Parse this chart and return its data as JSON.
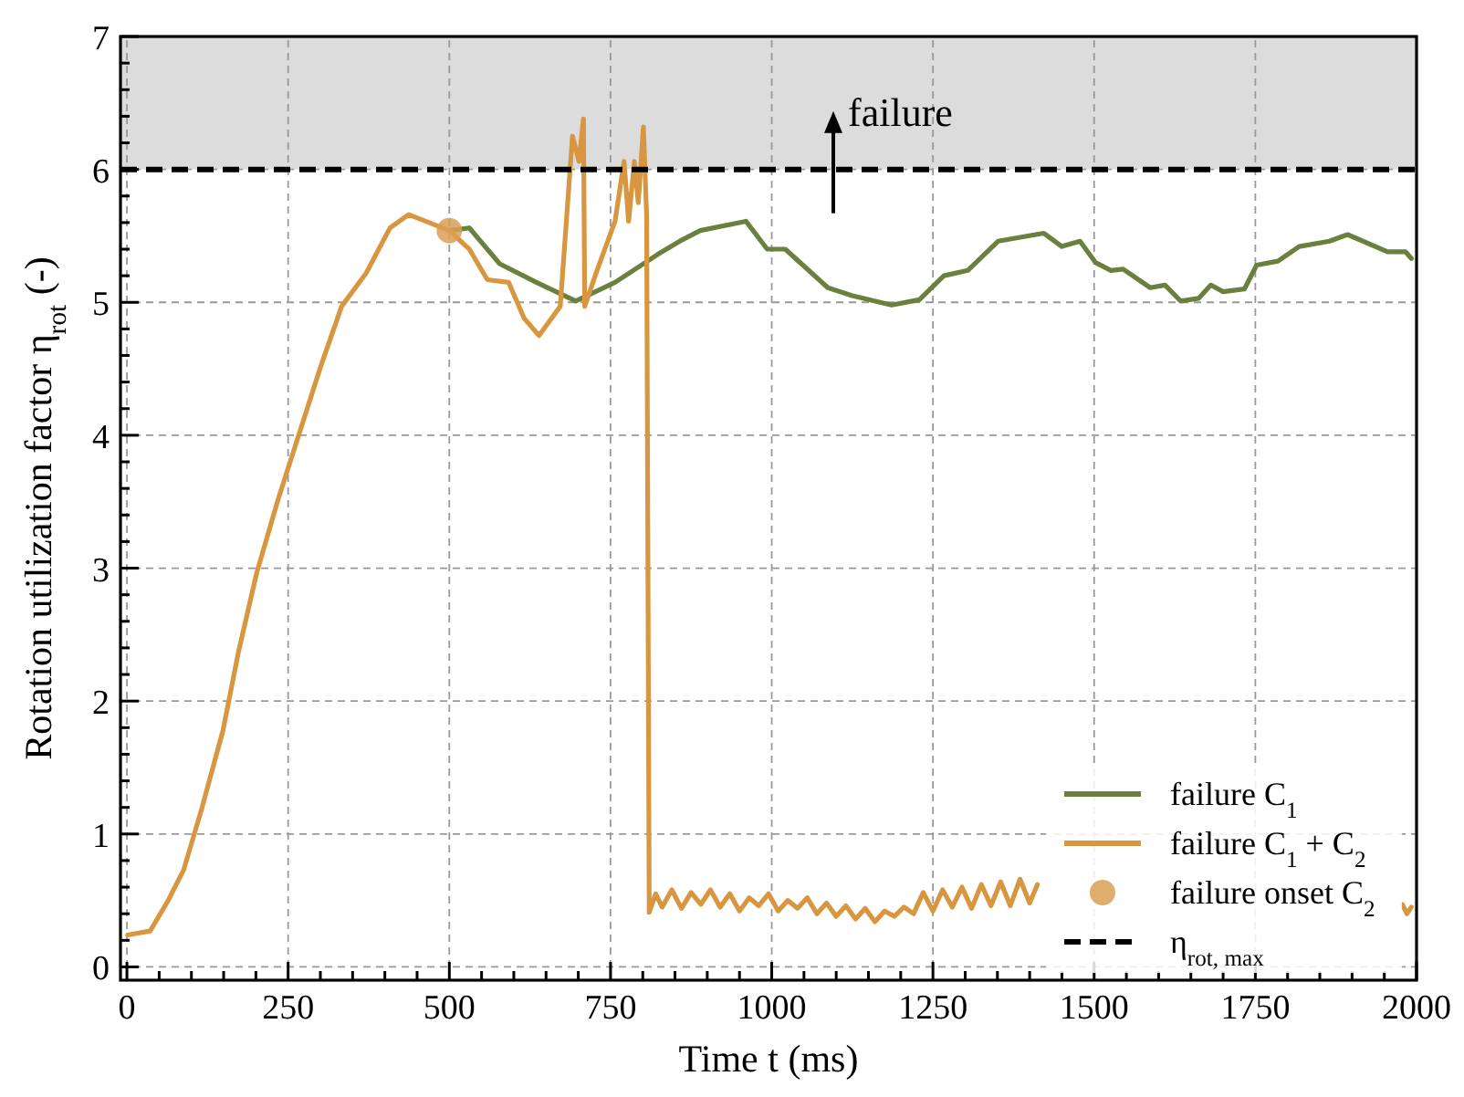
{
  "chart_data": {
    "type": "line",
    "xlabel": "Time t (ms)",
    "ylabel": "Rotation utilization factor η$_{rot}$ (-)",
    "xlim": [
      -10,
      2000
    ],
    "ylim": [
      -0.1,
      7
    ],
    "xticks": [
      0,
      {
        "value": 50,
        "label": null
      },
      {
        "value": 100,
        "label": null
      },
      {
        "value": 150,
        "label": null
      },
      {
        "value": 200,
        "label": null
      },
      250,
      {
        "value": 300,
        "label": null
      },
      {
        "value": 350,
        "label": null
      },
      {
        "value": 400,
        "label": null
      },
      {
        "value": 450,
        "label": null
      },
      500,
      {
        "value": 550,
        "label": null
      },
      {
        "value": 600,
        "label": null
      },
      {
        "value": 650,
        "label": null
      },
      {
        "value": 700,
        "label": null
      },
      750,
      {
        "value": 800,
        "label": null
      },
      {
        "value": 850,
        "label": null
      },
      {
        "value": 900,
        "label": null
      },
      {
        "value": 950,
        "label": null
      },
      1000,
      {
        "value": 1050,
        "label": null
      },
      {
        "value": 1100,
        "label": null
      },
      {
        "value": 1150,
        "label": null
      },
      {
        "value": 1200,
        "label": null
      },
      1250,
      {
        "value": 1300,
        "label": null
      },
      {
        "value": 1350,
        "label": null
      },
      {
        "value": 1400,
        "label": null
      },
      {
        "value": 1450,
        "label": null
      },
      1500,
      {
        "value": 1550,
        "label": null
      },
      {
        "value": 1600,
        "label": null
      },
      {
        "value": 1650,
        "label": null
      },
      {
        "value": 1700,
        "label": null
      },
      1750,
      {
        "value": 1800,
        "label": null
      },
      {
        "value": 1850,
        "label": null
      },
      {
        "value": 1900,
        "label": null
      },
      {
        "value": 1950,
        "label": null
      },
      2000
    ],
    "yticks": [
      0,
      {
        "value": 0.2,
        "label": null
      },
      {
        "value": 0.4,
        "label": null
      },
      {
        "value": 0.6,
        "label": null
      },
      {
        "value": 0.8,
        "label": null
      },
      1,
      {
        "value": 1.2,
        "label": null
      },
      {
        "value": 1.4,
        "label": null
      },
      {
        "value": 1.6,
        "label": null
      },
      {
        "value": 1.8,
        "label": null
      },
      2,
      {
        "value": 2.2,
        "label": null
      },
      {
        "value": 2.4,
        "label": null
      },
      {
        "value": 2.6,
        "label": null
      },
      {
        "value": 2.8,
        "label": null
      },
      3,
      {
        "value": 3.2,
        "label": null
      },
      {
        "value": 3.4,
        "label": null
      },
      {
        "value": 3.6,
        "label": null
      },
      {
        "value": 3.8,
        "label": null
      },
      4,
      {
        "value": 4.2,
        "label": null
      },
      {
        "value": 4.4,
        "label": null
      },
      {
        "value": 4.6,
        "label": null
      },
      {
        "value": 4.8,
        "label": null
      },
      5,
      {
        "value": 5.2,
        "label": null
      },
      {
        "value": 5.4,
        "label": null
      },
      {
        "value": 5.6,
        "label": null
      },
      {
        "value": 5.8,
        "label": null
      },
      6,
      {
        "value": 6.2,
        "label": null
      },
      {
        "value": 6.4,
        "label": null
      },
      {
        "value": 6.6,
        "label": null
      },
      {
        "value": 6.8,
        "label": null
      },
      7
    ],
    "grid": true,
    "legend": "bottom right",
    "series": [
      {
        "name": "failure C$_{1}$",
        "color": "#6b7f3e",
        "x": [
          500,
          531,
          578,
          635,
          696,
          757,
          823,
          861,
          889,
          960,
          993,
          1021,
          1087,
          1125,
          1186,
          1229,
          1267,
          1304,
          1351,
          1422,
          1450,
          1478,
          1502,
          1526,
          1545,
          1587,
          1610,
          1634,
          1662,
          1681,
          1700,
          1733,
          1752,
          1785,
          1818,
          1865,
          1893,
          1955,
          1983,
          1992
        ],
        "values": [
          5.54,
          5.56,
          5.29,
          5.15,
          5.01,
          5.15,
          5.36,
          5.47,
          5.54,
          5.61,
          5.4,
          5.4,
          5.11,
          5.05,
          4.98,
          5.02,
          5.2,
          5.24,
          5.46,
          5.52,
          5.42,
          5.46,
          5.3,
          5.24,
          5.25,
          5.11,
          5.13,
          5.01,
          5.03,
          5.13,
          5.08,
          5.1,
          5.28,
          5.31,
          5.42,
          5.46,
          5.51,
          5.38,
          5.38,
          5.33
        ]
      },
      {
        "name": "failure C$_{1}$ + C$_{2}$",
        "color": "#d89640",
        "x": [
          1,
          36,
          64,
          88,
          116,
          149,
          173,
          201,
          234,
          267,
          300,
          333,
          371,
          408,
          437,
          500,
          531,
          559,
          592,
          616,
          639,
          672,
          691,
          701,
          708,
          710,
          729,
          757,
          771,
          778,
          787,
          793,
          801,
          806,
          810,
          820,
          830,
          845,
          860,
          875,
          890,
          905,
          920,
          935,
          950,
          965,
          980,
          995,
          1010,
          1025,
          1040,
          1055,
          1070,
          1085,
          1100,
          1115,
          1130,
          1145,
          1160,
          1175,
          1190,
          1205,
          1220,
          1235,
          1250,
          1265,
          1280,
          1295,
          1310,
          1325,
          1340,
          1355,
          1370,
          1385,
          1400,
          1412,
          1700,
          1978,
          1985,
          1992
        ],
        "values": [
          0.24,
          0.27,
          0.5,
          0.73,
          1.19,
          1.78,
          2.37,
          2.96,
          3.51,
          4.01,
          4.51,
          4.97,
          5.22,
          5.56,
          5.66,
          5.54,
          5.4,
          5.17,
          5.15,
          4.88,
          4.75,
          4.97,
          6.25,
          6.06,
          6.38,
          4.97,
          5.24,
          5.61,
          6.06,
          5.61,
          6.06,
          5.75,
          6.32,
          5.65,
          0.41,
          0.55,
          0.45,
          0.58,
          0.44,
          0.56,
          0.47,
          0.58,
          0.45,
          0.55,
          0.42,
          0.52,
          0.46,
          0.55,
          0.42,
          0.5,
          0.44,
          0.52,
          0.4,
          0.48,
          0.38,
          0.46,
          0.36,
          0.44,
          0.34,
          0.42,
          0.38,
          0.45,
          0.4,
          0.56,
          0.42,
          0.58,
          0.45,
          0.6,
          0.44,
          0.62,
          0.46,
          0.64,
          0.46,
          0.66,
          0.48,
          0.62,
          null,
          0.47,
          0.4,
          0.45
        ]
      },
      {
        "name": "failure onset C$_{2}$",
        "type": "scatter",
        "marker": "circle",
        "color": "#d9a055",
        "x": [
          500
        ],
        "values": [
          5.54
        ]
      }
    ],
    "ref_lines": [
      {
        "axis": "y",
        "value": 6,
        "label": "η$_{rot, max}$",
        "color": "#000000",
        "line_style": "dashed"
      }
    ],
    "bands": [
      {
        "axis": "y",
        "from": 6,
        "to": 7,
        "label": "failure",
        "color": "#dcdcdc"
      }
    ]
  }
}
